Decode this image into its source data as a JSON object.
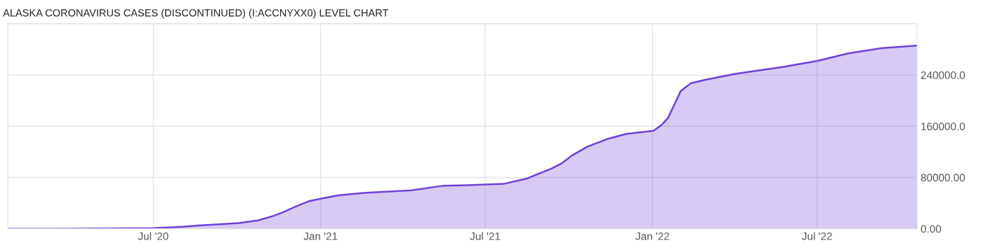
{
  "chart_data": {
    "type": "area",
    "title": "ALASKA CORONAVIRUS CASES (DISCONTINUED) (I:ACCNYXX0) LEVEL CHART",
    "x": [
      "2020-01-23",
      "2020-03-15",
      "2020-07-01",
      "2020-08-01",
      "2020-08-19",
      "2020-09-12",
      "2020-10-03",
      "2020-10-24",
      "2020-11-10",
      "2020-11-21",
      "2020-12-05",
      "2020-12-19",
      "2021-01-01",
      "2021-01-20",
      "2021-02-17",
      "2021-04-11",
      "2021-05-15",
      "2021-06-11",
      "2021-07-01",
      "2021-07-21",
      "2021-08-15",
      "2021-09-12",
      "2021-09-23",
      "2021-10-04",
      "2021-10-21",
      "2021-11-12",
      "2021-12-03",
      "2022-01-02",
      "2022-01-11",
      "2022-01-18",
      "2022-01-25",
      "2022-02-01",
      "2022-02-12",
      "2022-02-26",
      "2022-04-03",
      "2022-05-26",
      "2022-07-01",
      "2022-08-05",
      "2022-09-10",
      "2022-10-19"
    ],
    "series": [
      {
        "color": "#7040d8",
        "values": [
          0,
          0,
          1000,
          3000,
          5000,
          7000,
          9000,
          13000,
          20000,
          26000,
          35000,
          43000,
          47000,
          52000,
          56000,
          60000,
          67000,
          68000,
          69000,
          70000,
          78000,
          94000,
          102000,
          114000,
          128000,
          140000,
          148000,
          153000,
          162000,
          173000,
          194000,
          215000,
          227000,
          232000,
          242000,
          253000,
          262000,
          274000,
          282000,
          286000
        ]
      }
    ],
    "xlim": [
      "2020-01-23",
      "2022-10-19"
    ],
    "xticks": [
      {
        "value": "2020-07-01",
        "label": "Jul '20"
      },
      {
        "value": "2021-01-01",
        "label": "Jan '21"
      },
      {
        "value": "2021-07-01",
        "label": "Jul '21"
      },
      {
        "value": "2022-01-01",
        "label": "Jan '22"
      },
      {
        "value": "2022-07-01",
        "label": "Jul '22"
      }
    ],
    "ylim": [
      0,
      320000
    ],
    "yticks": [
      {
        "value": 0,
        "label": "0.00"
      },
      {
        "value": 80000,
        "label": "80000.00"
      },
      {
        "value": 160000,
        "label": "160000.0"
      },
      {
        "value": 240000,
        "label": "240000.0"
      }
    ],
    "grid": true
  }
}
